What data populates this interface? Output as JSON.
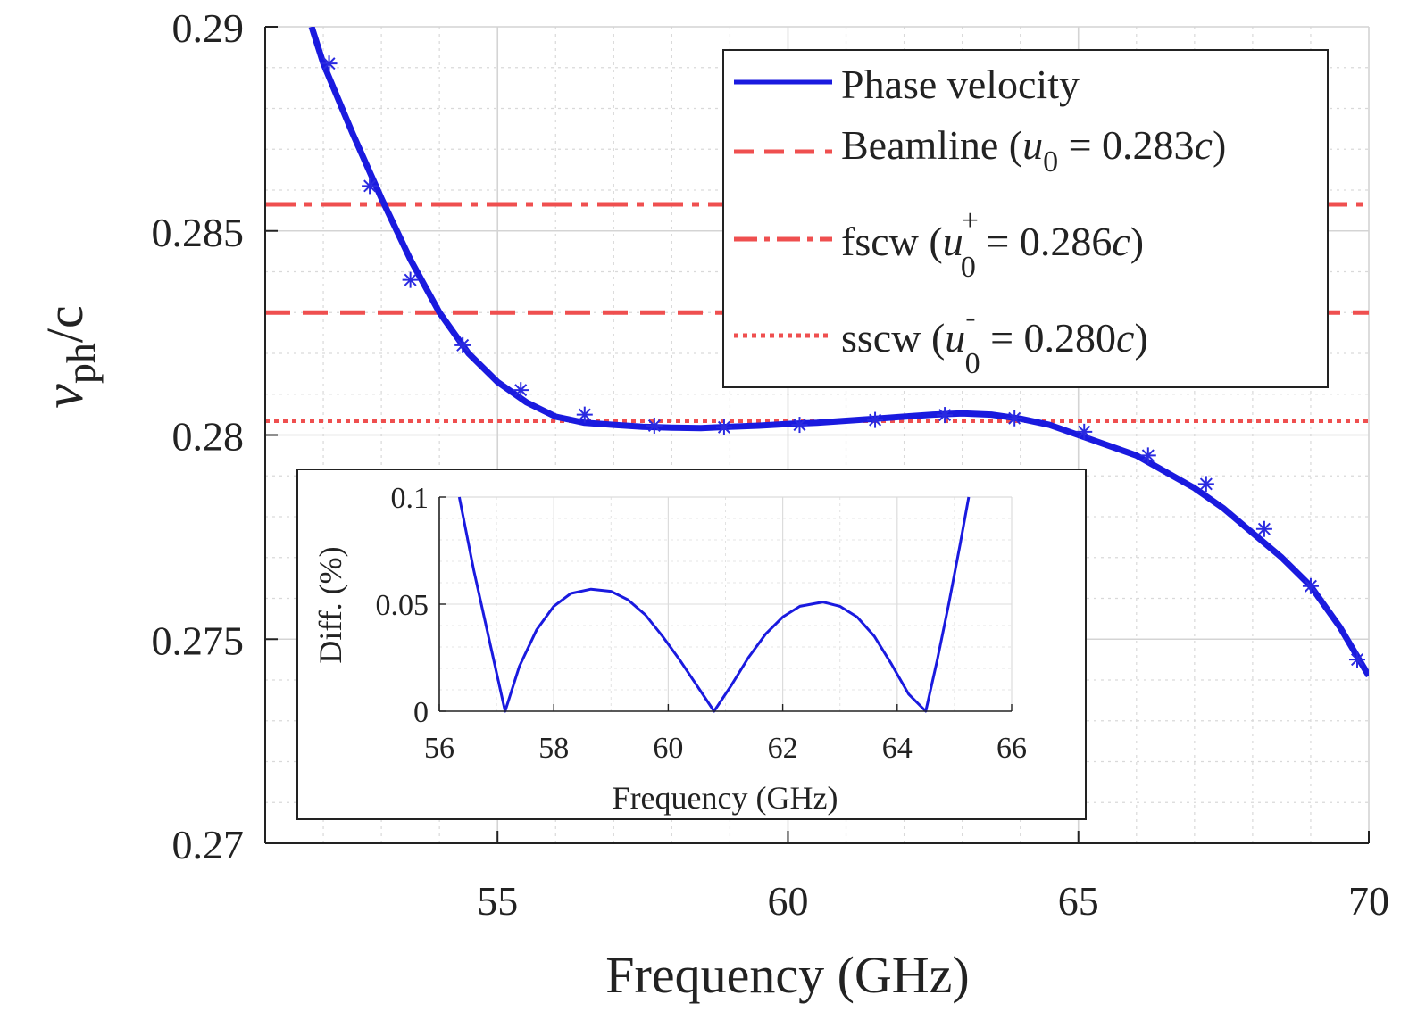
{
  "chart_data": [
    {
      "type": "line",
      "role": "main",
      "xlabel": "Frequency (GHz)",
      "ylabel": {
        "main": "v",
        "sub": "ph",
        "tail": "/c"
      },
      "xlim": [
        51,
        70
      ],
      "ylim": [
        0.27,
        0.29
      ],
      "grid": true,
      "minor_grid": true,
      "xticks": [
        55,
        60,
        65,
        70
      ],
      "xtick_labels": [
        "55",
        "60",
        "65",
        "70"
      ],
      "yticks": [
        0.27,
        0.275,
        0.28,
        0.285,
        0.29
      ],
      "ytick_labels": [
        "0.27",
        "0.275",
        "0.28",
        "0.285",
        "0.29"
      ],
      "colors": {
        "phase": "#1a1adf",
        "beam": "#ef4f4f",
        "marker": "#2a2ae0",
        "grid": "#d9d9d9"
      },
      "legend_position": "top-right",
      "series": [
        {
          "name": "Phase velocity",
          "style": "solid",
          "x": [
            51.8,
            52,
            52.5,
            53,
            53.5,
            54,
            54.5,
            55,
            55.5,
            56,
            56.5,
            57,
            57.5,
            58,
            58.5,
            59,
            59.5,
            60,
            60.5,
            61,
            61.5,
            62,
            62.5,
            63,
            63.5,
            64,
            64.5,
            65,
            65.5,
            66,
            66.5,
            67,
            67.5,
            68,
            68.5,
            69,
            69.5,
            70
          ],
          "y": [
            0.29,
            0.2891,
            0.2874,
            0.2858,
            0.2843,
            0.283,
            0.282,
            0.2813,
            0.2808,
            0.28045,
            0.2803,
            0.28025,
            0.2802,
            0.28018,
            0.28017,
            0.2802,
            0.28023,
            0.28027,
            0.2803,
            0.28035,
            0.2804,
            0.28045,
            0.2805,
            0.28053,
            0.2805,
            0.2804,
            0.28025,
            0.28,
            0.27975,
            0.2795,
            0.2791,
            0.2787,
            0.2782,
            0.2776,
            0.277,
            0.2763,
            0.2753,
            0.2741
          ]
        },
        {
          "name": "Phase velocity markers",
          "style": "markers",
          "x": [
            52.1,
            52.8,
            53.5,
            54.4,
            55.4,
            56.5,
            57.7,
            58.9,
            60.2,
            61.5,
            62.7,
            63.9,
            65.1,
            66.2,
            67.2,
            68.2,
            69.0,
            69.8
          ],
          "y": [
            0.2891,
            0.2861,
            0.2838,
            0.2822,
            0.2811,
            0.2805,
            0.28023,
            0.28019,
            0.28025,
            0.28037,
            0.28049,
            0.28041,
            0.28008,
            0.2795,
            0.2788,
            0.2777,
            0.2763,
            0.2745
          ]
        },
        {
          "name": "Beamline (u0 = 0.283c)",
          "style": "dashed",
          "y_const": 0.283
        },
        {
          "name": "fscw (u0+ = 0.286c)",
          "style": "dashdot",
          "y_const": 0.28565
        },
        {
          "name": "sscw (u0- = 0.280c)",
          "style": "dotted",
          "y_const": 0.28035
        }
      ],
      "legend": [
        {
          "id": "phase",
          "text": "Phase velocity",
          "style": "solid"
        },
        {
          "id": "beam",
          "prefix": "Beamline (",
          "var": "u",
          "sub": "0",
          "sup": "",
          "suffix": " = 0.283",
          "c": "c",
          "close": ")",
          "style": "dashed"
        },
        {
          "id": "fscw",
          "prefix": "fscw (",
          "var": "u",
          "sub": "0",
          "sup": "+",
          "suffix": " = 0.286",
          "c": "c",
          "close": ")",
          "style": "dashdot"
        },
        {
          "id": "sscw",
          "prefix": "sscw (",
          "var": "u",
          "sub": "0",
          "sup": "-",
          "suffix": " = 0.280",
          "c": "c",
          "close": ")",
          "style": "dotted"
        }
      ]
    },
    {
      "type": "line",
      "role": "inset",
      "xlabel": "Frequency (GHz)",
      "ylabel": "Diff. (%)",
      "xlim": [
        56,
        66
      ],
      "ylim": [
        0,
        0.1
      ],
      "grid": true,
      "xticks": [
        56,
        58,
        60,
        62,
        64,
        66
      ],
      "xtick_labels": [
        "56",
        "58",
        "60",
        "62",
        "64",
        "66"
      ],
      "yticks": [
        0,
        0.05,
        0.1
      ],
      "ytick_labels": [
        "0",
        "0.05",
        "0.1"
      ],
      "series": [
        {
          "name": "Diff",
          "x": [
            56.35,
            56.6,
            56.9,
            57.15,
            57.4,
            57.7,
            58.0,
            58.3,
            58.65,
            59.0,
            59.3,
            59.6,
            59.9,
            60.2,
            60.5,
            60.8,
            61.1,
            61.4,
            61.7,
            62.0,
            62.3,
            62.7,
            63.0,
            63.3,
            63.6,
            63.9,
            64.2,
            64.5,
            64.7,
            64.9,
            65.1,
            65.25
          ],
          "y": [
            0.1,
            0.066,
            0.03,
            0.0,
            0.021,
            0.038,
            0.049,
            0.055,
            0.057,
            0.056,
            0.052,
            0.045,
            0.035,
            0.024,
            0.012,
            0.0,
            0.012,
            0.025,
            0.036,
            0.044,
            0.049,
            0.051,
            0.049,
            0.044,
            0.035,
            0.022,
            0.008,
            0.0,
            0.024,
            0.05,
            0.078,
            0.1
          ]
        }
      ]
    }
  ]
}
